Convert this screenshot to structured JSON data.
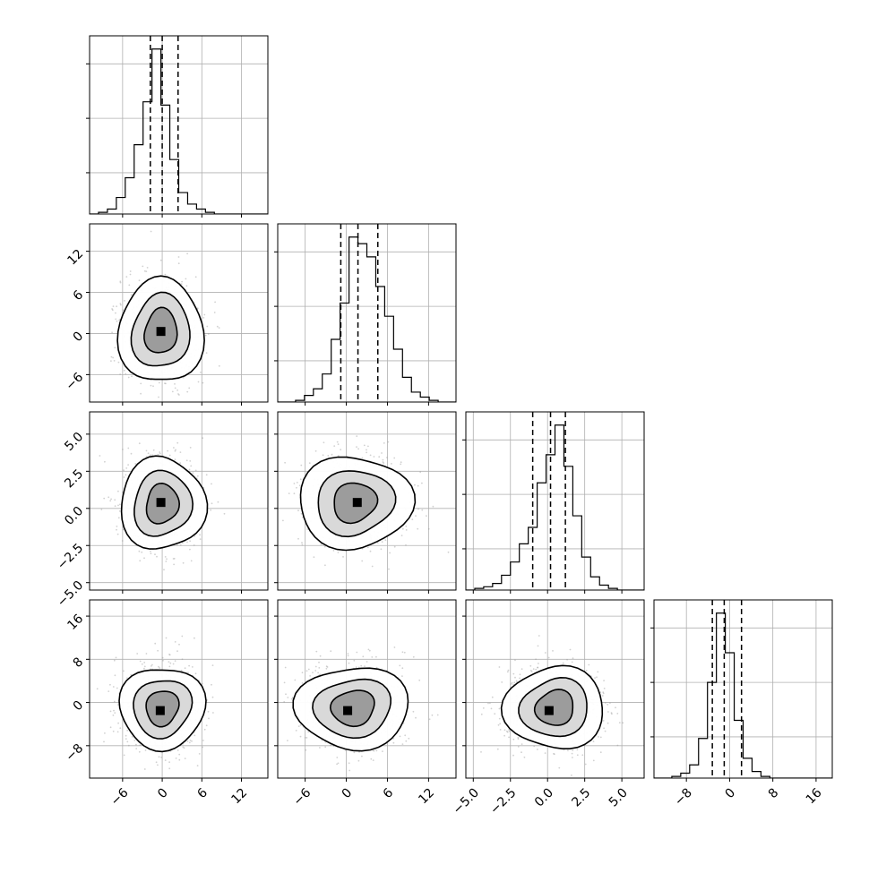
{
  "chart_data": {
    "type": "corner",
    "grid": true,
    "parameters": [
      {
        "range": [
          -11,
          16
        ],
        "ticks": [
          -6,
          0,
          6,
          12
        ],
        "tick_labels": [
          "−6",
          "0",
          "6",
          "12"
        ],
        "hist": {
          "edges": [
            -11,
            -9.65,
            -8.3,
            -6.95,
            -5.6,
            -4.25,
            -2.9,
            -1.55,
            -0.2,
            1.15,
            2.5,
            3.85,
            5.2,
            6.55,
            7.9,
            9.25,
            10.6,
            11.95,
            13.3,
            14.65,
            16
          ],
          "values": [
            0,
            1,
            3,
            10,
            22,
            42,
            68,
            100,
            66,
            33,
            13,
            6,
            3,
            1,
            0,
            0,
            0,
            0,
            0,
            0
          ]
        },
        "quantiles": [
          -1.8,
          0.0,
          2.4
        ]
      },
      {
        "range": [
          -10,
          16
        ],
        "ticks": [
          -6,
          0,
          6,
          12
        ],
        "tick_labels": [
          "−6",
          "0",
          "6",
          "12"
        ],
        "hist": {
          "edges": [
            -10,
            -8.7,
            -7.4,
            -6.1,
            -4.8,
            -3.5,
            -2.2,
            -0.9,
            0.4,
            1.7,
            3.0,
            4.3,
            5.6,
            6.9,
            8.2,
            9.5,
            10.8,
            12.1,
            13.4,
            14.7,
            16
          ],
          "values": [
            0,
            0,
            1,
            4,
            8,
            17,
            38,
            60,
            100,
            96,
            88,
            70,
            52,
            32,
            15,
            6,
            3,
            1,
            0,
            0
          ]
        },
        "quantiles": [
          -0.8,
          1.7,
          4.6
        ]
      },
      {
        "range": [
          -5.5,
          6.5
        ],
        "ticks": [
          -5.0,
          -2.5,
          0.0,
          2.5,
          5.0
        ],
        "tick_labels": [
          "−5.0",
          "−2.5",
          "0.0",
          "2.5",
          "5.0"
        ],
        "hist": {
          "edges": [
            -5.5,
            -4.9,
            -4.3,
            -3.7,
            -3.1,
            -2.5,
            -1.9,
            -1.3,
            -0.7,
            -0.1,
            0.5,
            1.1,
            1.7,
            2.3,
            2.9,
            3.5,
            4.1,
            4.7,
            5.3,
            5.9,
            6.5
          ],
          "values": [
            0,
            1,
            2,
            4,
            9,
            17,
            28,
            38,
            65,
            82,
            100,
            75,
            45,
            20,
            8,
            3,
            1,
            0,
            0,
            0
          ]
        },
        "quantiles": [
          -1.0,
          0.2,
          1.2
        ]
      },
      {
        "range": [
          -14,
          19
        ],
        "ticks": [
          -8,
          0,
          8,
          16
        ],
        "tick_labels": [
          "−8",
          "0",
          "8",
          "16"
        ],
        "hist": {
          "edges": [
            -14,
            -12.35,
            -10.7,
            -9.05,
            -7.4,
            -5.75,
            -4.1,
            -2.45,
            -0.8,
            0.85,
            2.5,
            4.15,
            5.8,
            7.45,
            9.1,
            10.75,
            12.4,
            14.05,
            15.7,
            17.35,
            19
          ],
          "values": [
            0,
            0,
            1,
            3,
            8,
            24,
            58,
            100,
            76,
            35,
            12,
            4,
            1,
            0,
            0,
            0,
            0,
            0,
            0,
            0
          ]
        },
        "quantiles": [
          -3.2,
          -1.0,
          2.2
        ]
      }
    ],
    "pairs": [
      {
        "row": 1,
        "col": 0,
        "mode": [
          -0.2,
          0.3
        ],
        "peak": [
          -0.2,
          0.3
        ]
      },
      {
        "row": 2,
        "col": 0,
        "mode": [
          0.0,
          0.3
        ],
        "peak": [
          -0.2,
          0.4
        ]
      },
      {
        "row": 2,
        "col": 1,
        "mode": [
          1.2,
          0.4
        ],
        "peak": [
          1.6,
          0.4
        ]
      },
      {
        "row": 3,
        "col": 0,
        "mode": [
          0.0,
          -1.0
        ],
        "peak": [
          -0.3,
          -1.5
        ]
      },
      {
        "row": 3,
        "col": 1,
        "mode": [
          1.0,
          -1.0
        ],
        "peak": [
          0.2,
          -1.5
        ]
      },
      {
        "row": 3,
        "col": 2,
        "mode": [
          0.5,
          -1.0
        ],
        "peak": [
          0.1,
          -1.5
        ]
      }
    ],
    "title": "",
    "xlabel": "",
    "ylabel": ""
  }
}
